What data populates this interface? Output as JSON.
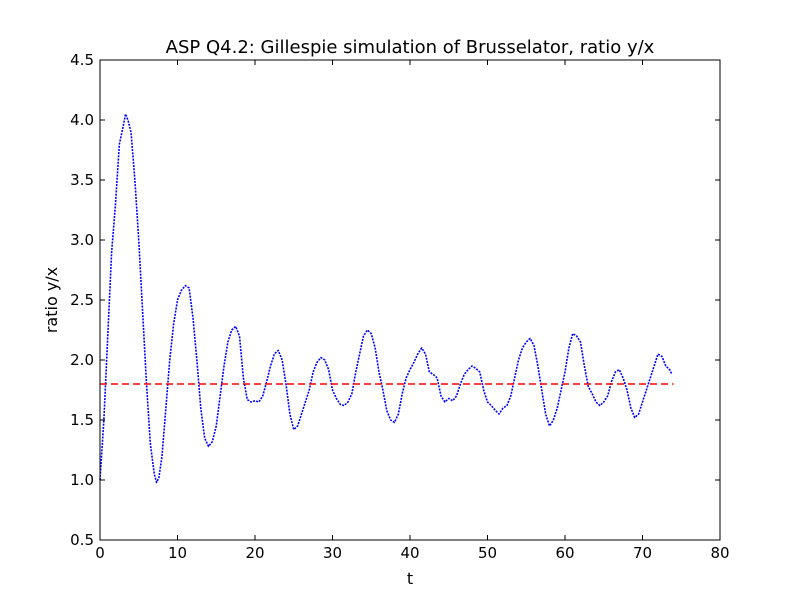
{
  "chart_data": {
    "type": "line",
    "title": "ASP Q4.2: Gillespie simulation of Brusselator, ratio y/x",
    "xlabel": "t",
    "ylabel": "ratio y/x",
    "xlim": [
      0,
      80
    ],
    "ylim": [
      0.5,
      4.5
    ],
    "x_ticks": [
      "0",
      "10",
      "20",
      "30",
      "40",
      "50",
      "60",
      "70",
      "80"
    ],
    "y_ticks": [
      "0.5",
      "1.0",
      "1.5",
      "2.0",
      "2.5",
      "3.0",
      "3.5",
      "4.0",
      "4.5"
    ],
    "grid": false,
    "legend": "none",
    "series": [
      {
        "style": "dotted line",
        "color": "#0000ff",
        "x": [
          0,
          0.5,
          1,
          1.5,
          2,
          2.5,
          3,
          3.3,
          3.6,
          4,
          4.5,
          5,
          5.5,
          6,
          6.5,
          7,
          7.3,
          7.6,
          8,
          8.5,
          9,
          9.5,
          10,
          10.5,
          11,
          11.5,
          12,
          12.5,
          13,
          13.5,
          14,
          14.5,
          15,
          15.5,
          16,
          16.5,
          17,
          17.5,
          18,
          18.5,
          19,
          19.5,
          20,
          20.5,
          21,
          21.5,
          22,
          22.5,
          23,
          23.5,
          24,
          24.5,
          25,
          25.5,
          26,
          26.5,
          27,
          27.5,
          28,
          28.5,
          29,
          29.5,
          30,
          30.5,
          31,
          31.5,
          32,
          32.5,
          33,
          33.5,
          34,
          34.5,
          35,
          35.5,
          36,
          36.5,
          37,
          37.5,
          38,
          38.5,
          39,
          39.5,
          40,
          40.5,
          41,
          41.5,
          42,
          42.5,
          43,
          43.5,
          44,
          44.5,
          45,
          45.5,
          46,
          46.5,
          47,
          47.5,
          48,
          48.5,
          49,
          49.5,
          50,
          50.5,
          51,
          51.5,
          52,
          52.5,
          53,
          53.5,
          54,
          54.5,
          55,
          55.5,
          56,
          56.5,
          57,
          57.5,
          58,
          58.5,
          59,
          59.5,
          60,
          60.5,
          61,
          61.5,
          62,
          62.5,
          63,
          63.5,
          64,
          64.5,
          65,
          65.5,
          66,
          66.5,
          67,
          67.5,
          68,
          68.5,
          69,
          69.5,
          70,
          70.5,
          71,
          71.5,
          72,
          72.5,
          73,
          73.5,
          73.8
        ],
        "y": [
          1.0,
          1.5,
          2.2,
          2.9,
          3.3,
          3.8,
          3.95,
          4.05,
          4.0,
          3.9,
          3.5,
          3.0,
          2.4,
          1.8,
          1.3,
          1.05,
          0.98,
          1.02,
          1.2,
          1.6,
          2.0,
          2.3,
          2.5,
          2.58,
          2.62,
          2.6,
          2.35,
          2.0,
          1.6,
          1.35,
          1.28,
          1.32,
          1.45,
          1.7,
          1.95,
          2.15,
          2.25,
          2.28,
          2.2,
          1.85,
          1.67,
          1.65,
          1.66,
          1.65,
          1.7,
          1.82,
          1.95,
          2.05,
          2.08,
          2.0,
          1.8,
          1.55,
          1.42,
          1.45,
          1.55,
          1.65,
          1.75,
          1.9,
          1.98,
          2.02,
          2.0,
          1.92,
          1.75,
          1.68,
          1.63,
          1.62,
          1.65,
          1.72,
          1.9,
          2.05,
          2.2,
          2.25,
          2.22,
          2.1,
          1.9,
          1.75,
          1.58,
          1.5,
          1.48,
          1.55,
          1.72,
          1.85,
          1.92,
          1.98,
          2.05,
          2.1,
          2.05,
          1.9,
          1.88,
          1.85,
          1.7,
          1.65,
          1.68,
          1.66,
          1.7,
          1.8,
          1.88,
          1.92,
          1.95,
          1.93,
          1.9,
          1.75,
          1.65,
          1.62,
          1.58,
          1.55,
          1.6,
          1.62,
          1.7,
          1.85,
          2.0,
          2.1,
          2.15,
          2.18,
          2.12,
          1.95,
          1.75,
          1.55,
          1.45,
          1.5,
          1.6,
          1.75,
          1.9,
          2.1,
          2.22,
          2.2,
          2.15,
          1.95,
          1.78,
          1.72,
          1.65,
          1.62,
          1.65,
          1.7,
          1.82,
          1.9,
          1.92,
          1.85,
          1.75,
          1.6,
          1.52,
          1.55,
          1.65,
          1.75,
          1.85,
          1.95,
          2.05,
          2.03,
          1.95,
          1.92,
          1.88
        ]
      },
      {
        "style": "dashed line",
        "color": "#ff0000",
        "x": [
          0,
          74
        ],
        "y": [
          1.8,
          1.8
        ]
      }
    ]
  }
}
